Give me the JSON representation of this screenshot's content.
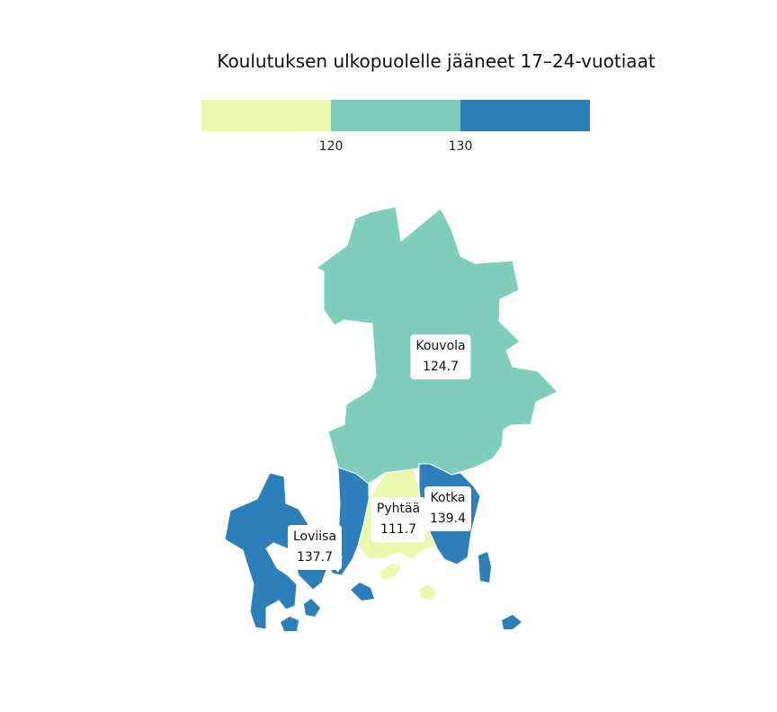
{
  "title": "Koulutuksen ulkopuolelle jääneet 17–24-vuotiaat",
  "legend": {
    "bins": [
      {
        "color": "#edf8b1"
      },
      {
        "color": "#7fcdbb"
      },
      {
        "color": "#2c7fb8"
      }
    ],
    "breaks": [
      "120",
      "130"
    ]
  },
  "regions": [
    {
      "id": "kouvola",
      "name": "Kouvola",
      "value": "124.7",
      "color": "#7fcdbb"
    },
    {
      "id": "pyhtaa",
      "name": "Pyhtää",
      "value": "111.7",
      "color": "#edf8b1"
    },
    {
      "id": "kotka",
      "name": "Kotka",
      "value": "139.4",
      "color": "#2c7fb8"
    },
    {
      "id": "loviisa",
      "name": "Loviisa",
      "value": "137.7",
      "color": "#2c7fb8"
    }
  ]
}
